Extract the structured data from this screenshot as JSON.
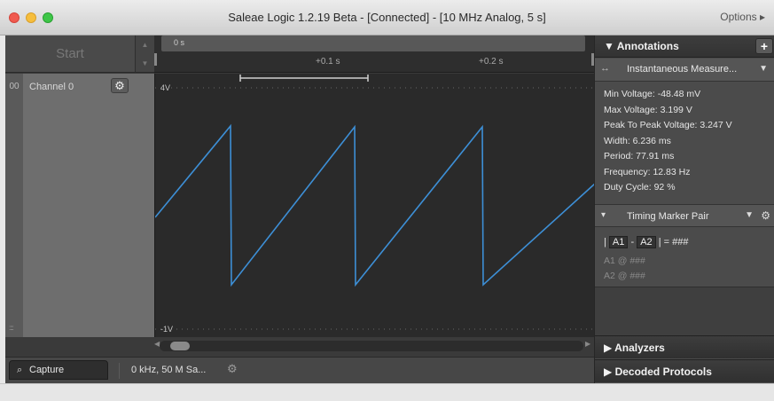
{
  "window": {
    "title": "Saleae Logic 1.2.19 Beta - [Connected] - [10 MHz Analog, 5 s]",
    "options_label": "Options ▸"
  },
  "left_panel": {
    "start_label": "Start",
    "channel_number": "00",
    "channel_name": "Channel 0",
    "grip_glyph": "::::"
  },
  "ruler": {
    "origin_label": "0 s",
    "tick_labels": [
      "+0.1 s",
      "+0.2 s"
    ]
  },
  "plot": {
    "top_label": "4V",
    "bottom_label": "-1V"
  },
  "tabbar": {
    "capture_label": "Capture",
    "capture_icon": "magnifier-icon",
    "rate_label": "0 kHz, 50 M Sa..."
  },
  "annotations": {
    "header": "Annotations",
    "add_label": "+",
    "measurement_title": "Instantaneous Measure...",
    "measurements": [
      "Min Voltage: -48.48 mV",
      "Max Voltage: 3.199 V",
      "Peak To Peak Voltage: 3.247 V",
      "Width: 6.236 ms",
      "Period: 77.91 ms",
      "Frequency: 12.83 Hz",
      "Duty Cycle: 92 %"
    ],
    "marker_title": "Timing Marker Pair",
    "formula_a1": "A1",
    "formula_a2": "A2",
    "formula_sep": "-",
    "formula_result": "| = ###",
    "a1_row": "A1  @  ###",
    "a2_row": "A2  @  ###"
  },
  "sections": {
    "analyzers": "Analyzers",
    "decoded_protocols": "Decoded Protocols"
  },
  "colors": {
    "waveform": "#3d8fd6",
    "panel_bg": "#4b4b4b",
    "plot_bg": "#2a2a2a"
  }
}
